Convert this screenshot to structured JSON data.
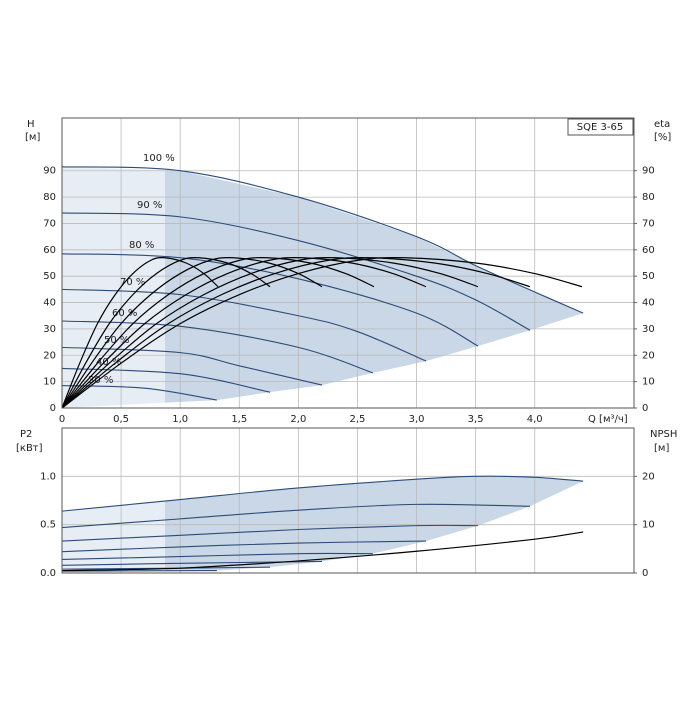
{
  "chart_data": [
    {
      "type": "line",
      "title": "SQE 3-65",
      "ylabel": "H",
      "yunit": "[м]",
      "y2label": "eta",
      "y2unit": "[%]",
      "xlabel": "Q [м³/ч]",
      "xlim": [
        0,
        4.84
      ],
      "xticks": [
        0,
        {
          "value": 0.5,
          "label": "0,5"
        },
        {
          "value": 1,
          "label": "1,0"
        },
        {
          "value": 1.5,
          "label": "1,5"
        },
        {
          "value": 2,
          "label": "2,0"
        },
        {
          "value": 2.5,
          "label": "2,5"
        },
        {
          "value": 3,
          "label": "3,0"
        },
        {
          "value": 3.5,
          "label": "3,5"
        },
        {
          "value": 4,
          "label": "4,0"
        }
      ],
      "ylim": [
        0,
        110
      ],
      "yticks": [
        0,
        10,
        20,
        30,
        40,
        50,
        60,
        70,
        80,
        90
      ],
      "y2lim": [
        0,
        110
      ],
      "y2ticks": [
        0,
        10,
        20,
        30,
        40,
        50,
        60,
        70,
        80,
        90
      ],
      "grid": true,
      "fill_color": "#c9d7e6",
      "series": [
        {
          "name": "100 %",
          "color": "#2c4c78",
          "x": [
            0,
            1,
            2,
            3,
            3.5,
            4,
            4.41
          ],
          "values": [
            91.5,
            90,
            80,
            65,
            54,
            44,
            36
          ]
        },
        {
          "name": "90 %",
          "color": "#2c4c78",
          "x": [
            0,
            1,
            2,
            3,
            3.5,
            3.96
          ],
          "values": [
            74,
            72.5,
            63.5,
            50,
            41,
            29.5
          ]
        },
        {
          "name": "80 %",
          "color": "#2c4c78",
          "x": [
            0,
            1,
            2,
            3,
            3.52
          ],
          "values": [
            58.5,
            57,
            49,
            36,
            23.5
          ]
        },
        {
          "name": "70 %",
          "color": "#2c4c78",
          "x": [
            0,
            1,
            2,
            2.5,
            3.08
          ],
          "values": [
            45,
            43,
            35,
            29,
            17.8
          ]
        },
        {
          "name": "60 %",
          "color": "#2c4c78",
          "x": [
            0,
            1,
            2,
            2.63
          ],
          "values": [
            33,
            31,
            23,
            13.3
          ]
        },
        {
          "name": "50 %",
          "color": "#2c4c78",
          "x": [
            0,
            1,
            1.5,
            2.2
          ],
          "values": [
            23,
            21,
            16,
            8.7
          ]
        },
        {
          "name": "40 %",
          "color": "#2c4c78",
          "x": [
            0,
            1,
            1.76
          ],
          "values": [
            15,
            13,
            6
          ]
        },
        {
          "name": "30 %",
          "color": "#2c4c78",
          "x": [
            0,
            0.7,
            1.31
          ],
          "values": [
            8.5,
            7.5,
            3
          ]
        },
        {
          "axis": "y2",
          "color": "#000000",
          "x": [
            0,
            0.5,
            1,
            1.5,
            2,
            2.5,
            2.9,
            3.5,
            4,
            4.4
          ],
          "values": [
            0,
            17,
            32,
            43,
            51,
            56,
            57,
            55,
            51,
            46
          ]
        },
        {
          "axis": "y2",
          "color": "#000000",
          "x": [
            0,
            0.45,
            0.9,
            1.35,
            1.8,
            2.25,
            2.61,
            3.15,
            3.6,
            3.96
          ],
          "values": [
            0,
            17,
            32,
            43,
            51,
            56,
            57,
            55,
            51,
            46
          ]
        },
        {
          "axis": "y2",
          "color": "#000000",
          "x": [
            0,
            0.4,
            0.8,
            1.2,
            1.6,
            2,
            2.32,
            2.8,
            3.2,
            3.52
          ],
          "values": [
            0,
            17,
            32,
            43,
            51,
            56,
            57,
            55,
            51,
            46
          ]
        },
        {
          "axis": "y2",
          "color": "#000000",
          "x": [
            0,
            0.35,
            0.7,
            1.05,
            1.4,
            1.75,
            2.03,
            2.45,
            2.8,
            3.08
          ],
          "values": [
            0,
            17,
            32,
            43,
            51,
            56,
            57,
            55,
            51,
            46
          ]
        },
        {
          "axis": "y2",
          "color": "#000000",
          "x": [
            0,
            0.3,
            0.6,
            0.9,
            1.2,
            1.5,
            1.74,
            2.1,
            2.4,
            2.64
          ],
          "values": [
            0,
            17,
            32,
            43,
            51,
            56,
            57,
            55,
            51,
            46
          ]
        },
        {
          "axis": "y2",
          "color": "#000000",
          "x": [
            0,
            0.25,
            0.5,
            0.75,
            1,
            1.25,
            1.45,
            1.75,
            2,
            2.2
          ],
          "values": [
            0,
            17,
            32,
            43,
            51,
            56,
            57,
            55,
            51,
            46
          ]
        },
        {
          "axis": "y2",
          "color": "#000000",
          "x": [
            0,
            0.2,
            0.4,
            0.6,
            0.8,
            1,
            1.16,
            1.4,
            1.6,
            1.76
          ],
          "values": [
            0,
            17,
            32,
            43,
            51,
            56,
            57,
            55,
            51,
            46
          ]
        },
        {
          "axis": "y2",
          "color": "#000000",
          "x": [
            0,
            0.15,
            0.3,
            0.45,
            0.6,
            0.75,
            0.87,
            1.05,
            1.2,
            1.32
          ],
          "values": [
            0,
            17,
            32,
            43,
            51,
            56,
            57,
            55,
            51,
            46
          ]
        }
      ]
    },
    {
      "type": "line",
      "ylabel": "P2",
      "yunit": "[кВт]",
      "y2label": "NPSH",
      "y2unit": "[м]",
      "xlim": [
        0,
        4.84
      ],
      "xticks": [
        0,
        0.5,
        1,
        1.5,
        2,
        2.5,
        3,
        3.5,
        4
      ],
      "ylim": [
        0,
        1.5
      ],
      "yticks": [
        {
          "value": 0,
          "label": "0.0"
        },
        {
          "value": 0.5,
          "label": "0.5"
        },
        {
          "value": 1,
          "label": "1.0"
        }
      ],
      "y2lim": [
        0,
        30
      ],
      "y2ticks": [
        0,
        10,
        20
      ],
      "grid": true,
      "fill_color": "#c9d7e6",
      "series": [
        {
          "color": "#2c4c78",
          "x": [
            0,
            1,
            2,
            3,
            3.5,
            4,
            4.41
          ],
          "values": [
            0.64,
            0.76,
            0.88,
            0.97,
            1.0,
            0.99,
            0.95
          ]
        },
        {
          "color": "#2c4c78",
          "x": [
            0,
            1,
            2,
            3,
            3.96
          ],
          "values": [
            0.47,
            0.56,
            0.65,
            0.71,
            0.69
          ]
        },
        {
          "color": "#2c4c78",
          "x": [
            0,
            1,
            2,
            3,
            3.52
          ],
          "values": [
            0.33,
            0.39,
            0.45,
            0.49,
            0.49
          ]
        },
        {
          "color": "#2c4c78",
          "x": [
            0,
            1,
            2,
            3.08
          ],
          "values": [
            0.22,
            0.27,
            0.31,
            0.33
          ]
        },
        {
          "color": "#2c4c78",
          "x": [
            0,
            1,
            2,
            2.63
          ],
          "values": [
            0.14,
            0.17,
            0.2,
            0.2
          ]
        },
        {
          "color": "#2c4c78",
          "x": [
            0,
            1,
            2.2
          ],
          "values": [
            0.08,
            0.1,
            0.12
          ]
        },
        {
          "color": "#2c4c78",
          "x": [
            0,
            1,
            1.76
          ],
          "values": [
            0.04,
            0.05,
            0.06
          ]
        },
        {
          "color": "#2c4c78",
          "x": [
            0,
            1.31
          ],
          "values": [
            0.02,
            0.025
          ]
        },
        {
          "axis": "y2",
          "color": "#000000",
          "x": [
            0,
            1,
            2,
            3,
            4,
            4.41
          ],
          "values": [
            0.5,
            1,
            2.5,
            4.5,
            7,
            8.5
          ]
        }
      ]
    }
  ]
}
